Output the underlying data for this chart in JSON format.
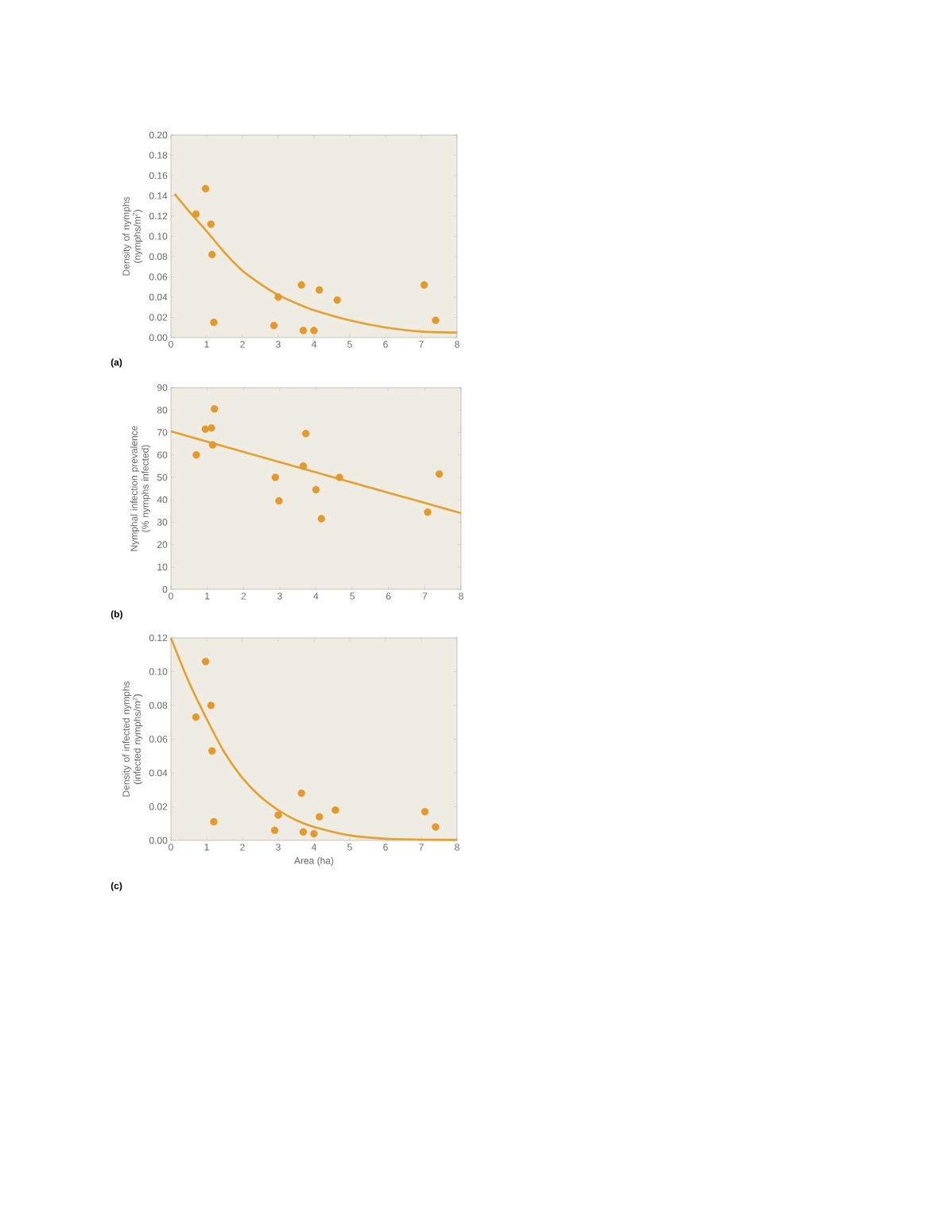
{
  "chart_data": [
    {
      "type": "scatter",
      "ylabel": "Density of nymphs (nymphs/m$^{2}$)",
      "annotations": [
        "(a)"
      ],
      "xlim": [
        0,
        8
      ],
      "xticks": [
        0,
        1,
        2,
        3,
        4,
        5,
        6,
        7,
        8
      ],
      "ylim": [
        0,
        0.2
      ],
      "yticks": [
        {
          "value": 0,
          "label": "0.00"
        },
        {
          "value": 0.02,
          "label": "0.02"
        },
        {
          "value": 0.04,
          "label": "0.04"
        },
        {
          "value": 0.06,
          "label": "0.06"
        },
        {
          "value": 0.08,
          "label": "0.08"
        },
        {
          "value": 0.1,
          "label": "0.10"
        },
        {
          "value": 0.12,
          "label": "0.12"
        },
        {
          "value": 0.14,
          "label": "0.14"
        },
        {
          "value": 0.16,
          "label": "0.16"
        },
        {
          "value": 0.18,
          "label": "0.18"
        },
        {
          "value": 0.2,
          "label": "0.20"
        }
      ],
      "series": [
        {
          "type": "scatter",
          "marker": "circle",
          "color": "#e39a2a",
          "x": [
            0.7,
            0.97,
            1.12,
            1.15,
            1.2,
            2.88,
            3.0,
            3.65,
            3.7,
            4.0,
            4.15,
            4.65,
            7.08,
            7.4
          ],
          "values": [
            0.122,
            0.147,
            0.112,
            0.082,
            0.015,
            0.012,
            0.04,
            0.052,
            0.007,
            0.007,
            0.047,
            0.037,
            0.052,
            0.017
          ]
        },
        {
          "type": "line",
          "marker": "none",
          "color": "#e6a030",
          "x": [
            0.1,
            0.5,
            1,
            1.5,
            2,
            2.5,
            3,
            3.5,
            4,
            5,
            6,
            7,
            8
          ],
          "values": [
            0.142,
            0.125,
            0.105,
            0.084,
            0.066,
            0.053,
            0.042,
            0.034,
            0.027,
            0.017,
            0.01,
            0.006,
            0.005
          ]
        }
      ]
    },
    {
      "type": "scatter",
      "ylabel": "Nymphal infection prevalence (% nymphs infected)",
      "annotations": [
        "(b)"
      ],
      "xlim": [
        0,
        8
      ],
      "xticks": [
        0,
        1,
        2,
        3,
        4,
        5,
        6,
        7,
        8
      ],
      "ylim": [
        0,
        90
      ],
      "yticks": [
        0,
        10,
        20,
        30,
        40,
        50,
        60,
        70,
        80,
        90
      ],
      "series": [
        {
          "type": "scatter",
          "marker": "circle",
          "color": "#e39a2a",
          "x": [
            0.7,
            0.95,
            1.12,
            1.15,
            1.2,
            2.88,
            2.98,
            3.65,
            3.72,
            4.0,
            4.15,
            4.65,
            7.08,
            7.4
          ],
          "values": [
            60,
            71.5,
            72,
            64.5,
            80.5,
            50,
            39.5,
            55,
            69.5,
            44.5,
            31.5,
            50,
            34.5,
            51.5
          ]
        },
        {
          "type": "line",
          "marker": "none",
          "color": "#e6a030",
          "x": [
            0,
            8
          ],
          "values": [
            70.5,
            34
          ]
        }
      ]
    },
    {
      "type": "scatter",
      "xlabel": "Area (ha)",
      "ylabel": "Density of infected nymphs (infected nymphs/m$^{2}$)",
      "annotations": [
        "(c)"
      ],
      "xlim": [
        0,
        8
      ],
      "xticks": [
        0,
        1,
        2,
        3,
        4,
        5,
        6,
        7,
        8
      ],
      "ylim": [
        0,
        0.12
      ],
      "yticks": [
        {
          "value": 0,
          "label": "0.00"
        },
        {
          "value": 0.02,
          "label": "0.02"
        },
        {
          "value": 0.04,
          "label": "0.04"
        },
        {
          "value": 0.06,
          "label": "0.06"
        },
        {
          "value": 0.08,
          "label": "0.08"
        },
        {
          "value": 0.1,
          "label": "0.10"
        },
        {
          "value": 0.12,
          "label": "0.12"
        }
      ],
      "series": [
        {
          "type": "scatter",
          "marker": "circle",
          "color": "#e39a2a",
          "x": [
            0.7,
            0.97,
            1.12,
            1.15,
            1.2,
            2.9,
            3.0,
            3.65,
            3.7,
            4.0,
            4.15,
            4.6,
            7.1,
            7.4
          ],
          "values": [
            0.073,
            0.106,
            0.08,
            0.053,
            0.011,
            0.006,
            0.015,
            0.028,
            0.005,
            0.004,
            0.014,
            0.018,
            0.017,
            0.008
          ]
        },
        {
          "type": "line",
          "marker": "none",
          "color": "#e6a030",
          "x": [
            0,
            0.5,
            1,
            1.5,
            2,
            2.5,
            3,
            3.5,
            4,
            5,
            6,
            7,
            8
          ],
          "values": [
            0.12,
            0.094,
            0.072,
            0.052,
            0.037,
            0.026,
            0.018,
            0.012,
            0.008,
            0.003,
            0.001,
            0.0005,
            0.0003
          ]
        }
      ]
    }
  ]
}
